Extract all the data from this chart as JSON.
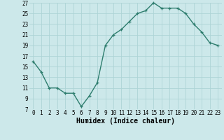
{
  "x": [
    0,
    1,
    2,
    3,
    4,
    5,
    6,
    7,
    8,
    9,
    10,
    11,
    12,
    13,
    14,
    15,
    16,
    17,
    18,
    19,
    20,
    21,
    22,
    23
  ],
  "y": [
    16,
    14,
    11,
    11,
    10,
    10,
    7.5,
    9.5,
    12,
    19,
    21,
    22,
    23.5,
    25,
    25.5,
    27,
    26,
    26,
    26,
    25,
    23,
    21.5,
    19.5,
    19
  ],
  "line_color": "#2e7d6e",
  "marker": "+",
  "marker_size": 3.5,
  "line_width": 1.0,
  "background_color": "#cce8ea",
  "grid_color": "#aed4d6",
  "xlabel": "Humidex (Indice chaleur)",
  "xlabel_fontsize": 7,
  "ylim": [
    7,
    27
  ],
  "yticks": [
    7,
    9,
    11,
    13,
    15,
    17,
    19,
    21,
    23,
    25,
    27
  ],
  "xlim": [
    -0.5,
    23.5
  ],
  "xticks": [
    0,
    1,
    2,
    3,
    4,
    5,
    6,
    7,
    8,
    9,
    10,
    11,
    12,
    13,
    14,
    15,
    16,
    17,
    18,
    19,
    20,
    21,
    22,
    23
  ],
  "tick_fontsize": 5.5
}
